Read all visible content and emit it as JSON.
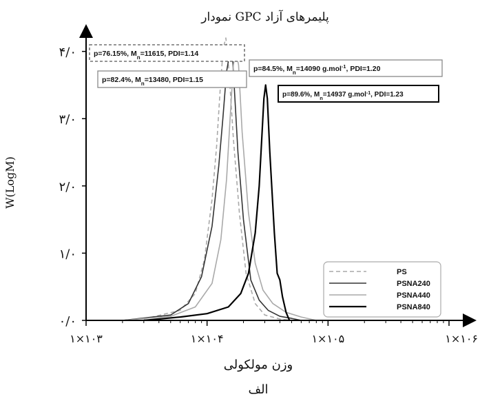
{
  "chart_data": {
    "type": "line",
    "title": "نمودار GPC پلیمرهای آزاد",
    "xlabel": "وزن مولکولی",
    "ylabel": "W(LogM)",
    "caption": "الف",
    "x_scale": "log",
    "xlim": [
      1000,
      1000000
    ],
    "ylim": [
      0,
      4.15
    ],
    "x_ticks": [
      1000,
      10000,
      100000,
      1000000
    ],
    "x_tick_labels": [
      "۱×۱۰۳",
      "۱×۱۰۴",
      "۱×۱۰۵",
      "۱×۱۰۶"
    ],
    "y_ticks": [
      0,
      1,
      2,
      3,
      4
    ],
    "y_tick_labels": [
      "۰/۰",
      "۱/۰",
      "۲/۰",
      "۳/۰",
      "۴/۰"
    ],
    "legend_position": "bottom-right",
    "series": [
      {
        "name": "PS",
        "style": "dashed",
        "color": "#a9a9a9",
        "x": [
          3000,
          6000,
          8000,
          9500,
          11000,
          12000,
          12800,
          13600,
          14300,
          15200,
          16500,
          18500,
          21000,
          25000,
          30000,
          40000,
          50000
        ],
        "y": [
          0.02,
          0.15,
          0.4,
          0.9,
          1.8,
          2.6,
          3.4,
          4.05,
          4.2,
          3.7,
          2.7,
          1.6,
          0.7,
          0.25,
          0.08,
          0.02,
          0.0
        ]
      },
      {
        "name": "PSNA240",
        "style": "solid",
        "color": "#333333",
        "x": [
          2000,
          5000,
          7000,
          9000,
          11000,
          12500,
          13500,
          14500,
          15500,
          16200,
          17000,
          18000,
          20000,
          23000,
          27000,
          32000,
          40000,
          50000,
          60000
        ],
        "y": [
          0.0,
          0.08,
          0.25,
          0.65,
          1.4,
          2.3,
          3.0,
          3.7,
          4.0,
          3.95,
          3.3,
          2.5,
          1.5,
          0.6,
          0.3,
          0.15,
          0.06,
          0.03,
          0.0
        ]
      },
      {
        "name": "PSNA440",
        "style": "solid",
        "color": "#a9a9a9",
        "x": [
          2000,
          5000,
          8000,
          11000,
          13000,
          14500,
          15500,
          16500,
          17300,
          18200,
          19500,
          22000,
          25000,
          29000,
          35000,
          45000,
          60000,
          80000
        ],
        "y": [
          0.0,
          0.06,
          0.2,
          0.55,
          1.2,
          2.1,
          3.0,
          3.8,
          4.0,
          3.8,
          2.8,
          1.6,
          0.85,
          0.45,
          0.25,
          0.12,
          0.05,
          0.0
        ]
      },
      {
        "name": "PSNA840",
        "style": "solid",
        "color": "#000000",
        "x": [
          3000,
          6000,
          10000,
          15000,
          19000,
          22000,
          25000,
          27000,
          28500,
          29500,
          30500,
          31500,
          33000,
          36000,
          38000,
          40000,
          42000,
          45000,
          48000
        ],
        "y": [
          0.0,
          0.05,
          0.1,
          0.2,
          0.4,
          0.7,
          1.3,
          2.0,
          2.8,
          3.3,
          3.5,
          3.3,
          2.5,
          1.3,
          0.7,
          0.6,
          0.35,
          0.12,
          0.0
        ]
      }
    ],
    "annotations": [
      {
        "text": "p=76.15%, Mn=11615, PDI=1.14",
        "parts": [
          "p=76.15%, M",
          "n",
          "=11615, PDI=1.14"
        ],
        "border": "dashed",
        "color": "#555555"
      },
      {
        "text": "p=82.4%, Mn=13480, PDI=1.15",
        "parts": [
          "p=82.4%, M",
          "n",
          "=13480, PDI=1.15"
        ],
        "border": "solid",
        "color": "#888888"
      },
      {
        "text": "p=84.5%, Mn=14090 g.mol-1, PDI=1.20",
        "parts": [
          "p=84.5%, M",
          "n",
          "=14090 g.mol",
          "-1",
          ", PDI=1.20"
        ],
        "border": "solid",
        "color": "#888888"
      },
      {
        "text": "p=89.6%, Mn=14937 g.mol-1, PDI=1.23",
        "parts": [
          "p=89.6%, M",
          "n",
          "=14937 g.mol",
          "-1",
          ", PDI=1.23"
        ],
        "border": "solid",
        "color": "#000000"
      }
    ]
  }
}
